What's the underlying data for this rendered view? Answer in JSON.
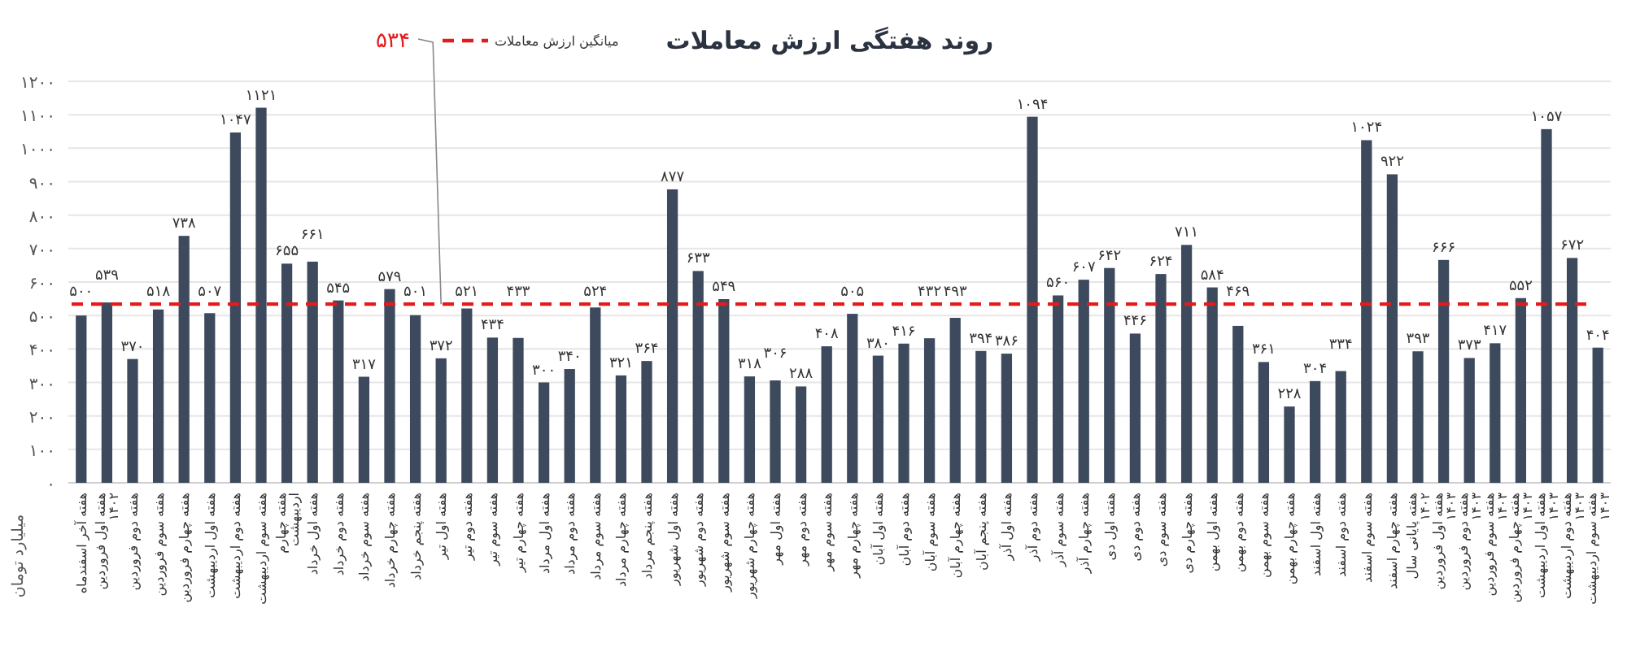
{
  "chart_data": {
    "type": "bar",
    "title": "روند هفتگی ارزش معاملات",
    "ylabel": "میلیارد تومان",
    "categories": [
      "هفته آخر اسفندماه",
      "هفته اول فروردین ۱۴۰۲",
      "هفته دوم فروردین",
      "هفته سوم فروردین",
      "هفته چهارم فروردین",
      "هفته اول اردیبهشت",
      "هفته دوم اردیبهشت",
      "هفته سوم اردیبهشت",
      "هفته چهارم اردیبهشت",
      "هفته اول خرداد",
      "هفته دوم خرداد",
      "هفته سوم خرداد",
      "هفته چهارم خرداد",
      "هفته پنجم خرداد",
      "هفته اول تیر",
      "هفته دوم تیر",
      "هفته سوم تیر",
      "هفته چهارم تیر",
      "هفته اول مرداد",
      "هفته دوم مرداد",
      "هفته سوم مرداد",
      "هفته چهارم مرداد",
      "هفته پنجم مرداد",
      "هفته اول شهریور",
      "هفته دوم شهریور",
      "هفته سوم شهریور",
      "هفته چهارم شهریور",
      "هفته اول مهر",
      "هفته دوم مهر",
      "هفته سوم مهر",
      "هفته چهارم مهر",
      "هفته اول آبان",
      "هفته دوم آبان",
      "هفته سوم آبان",
      "هفته چهارم آبان",
      "هفته پنجم آبان",
      "هفته اول آذر",
      "هفته دوم آذر",
      "هفته سوم آذر",
      "هفته چهارم آذر",
      "هفته اول دی",
      "هفته دوم دی",
      "هفته سوم دی",
      "هفته چهارم دی",
      "هفته اول بهمن",
      "هفته دوم بهمن",
      "هفته سوم بهمن",
      "هفته چهارم بهمن",
      "هفته اول اسفند",
      "هفته دوم اسفند",
      "هفته سوم اسفند",
      "هفته چهارم اسفند",
      "هفته پایانی سال ۱۴۰۲",
      "هفته اول فروردین ۱۴۰۳",
      "هفته دوم فروردین ۱۴۰۳",
      "هفته سوم فروردین ۱۴۰۳",
      "هفته چهارم فروردین ۱۴۰۳",
      "هفته اول اردیبهشت ۱۴۰۳",
      "هفته دوم اردیبهشت ۱۴۰۳",
      "هفته سوم اردیبهشت ۱۴۰۳"
    ],
    "values": [
      500,
      539,
      370,
      518,
      738,
      507,
      1047,
      1121,
      655,
      661,
      545,
      317,
      579,
      501,
      372,
      521,
      434,
      433,
      300,
      340,
      524,
      321,
      364,
      877,
      633,
      549,
      318,
      306,
      288,
      408,
      505,
      380,
      416,
      432,
      493,
      394,
      386,
      1094,
      560,
      607,
      642,
      446,
      624,
      711,
      584,
      469,
      361,
      228,
      304,
      334,
      1024,
      922,
      393,
      666,
      373,
      417,
      552,
      1057,
      672,
      404
    ],
    "value_labels": [
      "۵۰۰",
      "۵۳۹",
      "۳۷۰",
      "۵۱۸",
      "۷۳۸",
      "۵۰۷",
      "۱۰۴۷",
      "۱۱۲۱",
      "۶۵۵",
      "۶۶۱",
      "۵۴۵",
      "۳۱۷",
      "۵۷۹",
      "۵۰۱",
      "۳۷۲",
      "۵۲۱",
      "۴۳۴",
      "۴۳۳",
      "۳۰۰",
      "۳۴۰",
      "۵۲۴",
      "۳۲۱",
      "۳۶۴",
      "۸۷۷",
      "۶۳۳",
      "۵۴۹",
      "۳۱۸",
      "۳۰۶",
      "۲۸۸",
      "۴۰۸",
      "۵۰۵",
      "۳۸۰",
      "۴۱۶",
      "۴۳۲",
      "۴۹۳",
      "۳۹۴",
      "۳۸۶",
      "۱۰۹۴",
      "۵۶۰",
      "۶۰۷",
      "۶۴۲",
      "۴۴۶",
      "۶۲۴",
      "۷۱۱",
      "۵۸۴",
      "۴۶۹",
      "۳۶۱",
      "۲۲۸",
      "۳۰۴",
      "۳۳۴",
      "۱۰۲۴",
      "۹۲۲",
      "۳۹۳",
      "۶۶۶",
      "۳۷۳",
      "۴۱۷",
      "۵۵۲",
      "۱۰۵۷",
      "۶۷۲",
      "۴۰۴"
    ],
    "color": "#3d4a5e",
    "ylim": [
      0,
      1200
    ],
    "yticks": [
      {
        "value": 0,
        "label": "۰"
      },
      {
        "value": 100,
        "label": "۱۰۰"
      },
      {
        "value": 200,
        "label": "۲۰۰"
      },
      {
        "value": 300,
        "label": "۳۰۰"
      },
      {
        "value": 400,
        "label": "۴۰۰"
      },
      {
        "value": 500,
        "label": "۵۰۰"
      },
      {
        "value": 600,
        "label": "۶۰۰"
      },
      {
        "value": 700,
        "label": "۷۰۰"
      },
      {
        "value": 800,
        "label": "۸۰۰"
      },
      {
        "value": 900,
        "label": "۹۰۰"
      },
      {
        "value": 1000,
        "label": "۱۰۰۰"
      },
      {
        "value": 1100,
        "label": "۱۱۰۰"
      },
      {
        "value": 1200,
        "label": "۱۲۰۰"
      }
    ],
    "grid": "y",
    "legend": "top",
    "ref_lines": [
      {
        "axis": "y",
        "value": 534,
        "label": "میانگین ارزش معاملات",
        "color": "#e31b1b",
        "line_style": "dashed"
      }
    ],
    "annotations": [
      {
        "text": "۵۳۴",
        "x": "هفته اول تیر",
        "y": 534
      }
    ]
  }
}
